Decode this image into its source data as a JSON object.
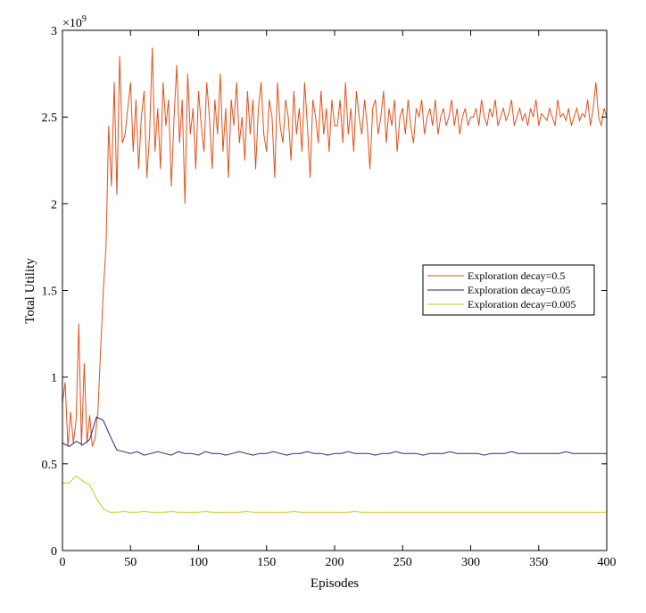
{
  "chart_data": {
    "type": "line",
    "xlabel": "Episodes",
    "ylabel": "Total Utility",
    "y_exponent_label": "×10",
    "y_exponent_power": "9",
    "xlim": [
      0,
      400
    ],
    "ylim": [
      0,
      3
    ],
    "xticks": [
      0,
      50,
      100,
      150,
      200,
      250,
      300,
      350,
      400
    ],
    "yticks": [
      0,
      0.5,
      1,
      1.5,
      2,
      2.5,
      3
    ],
    "ytick_labels": [
      "0",
      "0.5",
      "1",
      "1.5",
      "2",
      "2.5",
      "3"
    ],
    "grid": false,
    "legend_position": "right",
    "series": [
      {
        "name": "Exploration decay=0.5",
        "color": "#e0511b",
        "values": [
          0.85,
          0.97,
          0.6,
          0.8,
          0.62,
          0.75,
          1.31,
          0.6,
          1.08,
          0.62,
          0.78,
          0.6,
          0.65,
          0.8,
          1.15,
          1.5,
          1.75,
          2.45,
          2.1,
          2.7,
          2.05,
          2.85,
          2.35,
          2.4,
          2.55,
          2.7,
          2.3,
          2.6,
          2.2,
          2.5,
          2.65,
          2.15,
          2.4,
          2.9,
          2.3,
          2.55,
          2.2,
          2.7,
          2.45,
          2.6,
          2.1,
          2.5,
          2.8,
          2.35,
          2.6,
          2.0,
          2.75,
          2.4,
          2.55,
          2.2,
          2.65,
          2.45,
          2.3,
          2.7,
          2.5,
          2.2,
          2.6,
          2.4,
          2.75,
          2.3,
          2.55,
          2.15,
          2.6,
          2.45,
          2.7,
          2.35,
          2.5,
          2.25,
          2.65,
          2.4,
          2.6,
          2.2,
          2.55,
          2.7,
          2.4,
          2.3,
          2.6,
          2.5,
          2.15,
          2.7,
          2.45,
          2.35,
          2.6,
          2.5,
          2.25,
          2.65,
          2.4,
          2.55,
          2.3,
          2.7,
          2.45,
          2.15,
          2.6,
          2.5,
          2.35,
          2.65,
          2.4,
          2.55,
          2.3,
          2.6,
          2.45,
          2.45,
          2.6,
          2.35,
          2.7,
          2.4,
          2.55,
          2.3,
          2.65,
          2.5,
          2.4,
          2.6,
          2.45,
          2.2,
          2.55,
          2.6,
          2.4,
          2.5,
          2.65,
          2.35,
          2.55,
          2.45,
          2.6,
          2.3,
          2.5,
          2.55,
          2.4,
          2.6,
          2.45,
          2.35,
          2.55,
          2.5,
          2.6,
          2.4,
          2.5,
          2.55,
          2.45,
          2.6,
          2.4,
          2.5,
          2.55,
          2.45,
          2.5,
          2.6,
          2.45,
          2.55,
          2.4,
          2.5,
          2.55,
          2.45,
          2.5,
          2.5,
          2.55,
          2.45,
          2.6,
          2.5,
          2.45,
          2.55,
          2.5,
          2.6,
          2.45,
          2.5,
          2.55,
          2.48,
          2.52,
          2.6,
          2.45,
          2.5,
          2.55,
          2.48,
          2.52,
          2.45,
          2.55,
          2.5,
          2.6,
          2.45,
          2.52,
          2.5,
          2.48,
          2.55,
          2.5,
          2.45,
          2.6,
          2.5,
          2.52,
          2.48,
          2.55,
          2.45,
          2.5,
          2.55,
          2.48,
          2.52,
          2.5,
          2.6,
          2.45,
          2.55,
          2.7,
          2.5,
          2.45,
          2.55,
          2.5
        ]
      },
      {
        "name": "Exploration decay=0.05",
        "color": "#1f2a80",
        "values": [
          0.62,
          0.6,
          0.63,
          0.61,
          0.64,
          0.77,
          0.75,
          0.66,
          0.58,
          0.57,
          0.56,
          0.57,
          0.55,
          0.56,
          0.57,
          0.56,
          0.55,
          0.57,
          0.56,
          0.56,
          0.55,
          0.57,
          0.56,
          0.56,
          0.55,
          0.56,
          0.57,
          0.56,
          0.55,
          0.56,
          0.56,
          0.57,
          0.56,
          0.55,
          0.56,
          0.56,
          0.57,
          0.56,
          0.56,
          0.55,
          0.56,
          0.56,
          0.57,
          0.56,
          0.56,
          0.56,
          0.55,
          0.56,
          0.56,
          0.57,
          0.56,
          0.56,
          0.56,
          0.55,
          0.56,
          0.56,
          0.56,
          0.57,
          0.56,
          0.56,
          0.56,
          0.56,
          0.55,
          0.56,
          0.56,
          0.56,
          0.57,
          0.56,
          0.56,
          0.56,
          0.56,
          0.56,
          0.56,
          0.56,
          0.57,
          0.56,
          0.56,
          0.56,
          0.56,
          0.56,
          0.56
        ]
      },
      {
        "name": "Exploration decay=0.005",
        "color": "#c8c81e",
        "values": [
          0.39,
          0.39,
          0.43,
          0.4,
          0.38,
          0.3,
          0.24,
          0.22,
          0.22,
          0.225,
          0.22,
          0.22,
          0.225,
          0.22,
          0.22,
          0.22,
          0.225,
          0.22,
          0.22,
          0.22,
          0.22,
          0.225,
          0.22,
          0.22,
          0.22,
          0.22,
          0.22,
          0.225,
          0.22,
          0.22,
          0.22,
          0.22,
          0.22,
          0.22,
          0.225,
          0.22,
          0.22,
          0.22,
          0.22,
          0.22,
          0.22,
          0.22,
          0.22,
          0.225,
          0.22,
          0.22,
          0.22,
          0.22,
          0.22,
          0.22,
          0.22,
          0.22,
          0.22,
          0.22,
          0.22,
          0.22,
          0.22,
          0.22,
          0.22,
          0.22,
          0.22,
          0.22,
          0.22,
          0.22,
          0.22,
          0.22,
          0.22,
          0.22,
          0.22,
          0.22,
          0.22,
          0.22,
          0.22,
          0.22,
          0.22,
          0.22,
          0.22,
          0.22,
          0.22,
          0.22,
          0.22
        ]
      }
    ]
  }
}
